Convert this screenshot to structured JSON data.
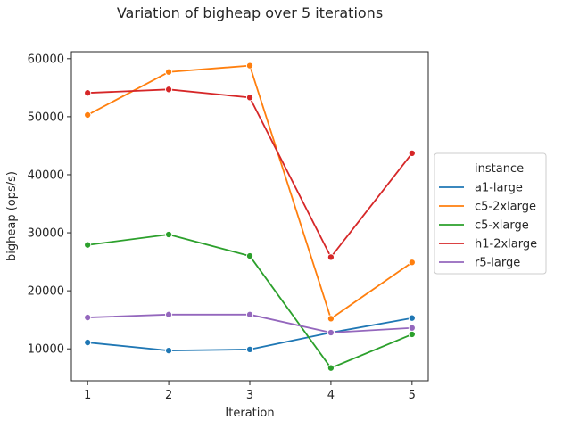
{
  "chart_data": {
    "type": "line",
    "title": "Variation of bigheap over 5 iterations",
    "xlabel": "Iteration",
    "ylabel": "bigheap (ops/s)",
    "x": [
      1,
      2,
      3,
      4,
      5
    ],
    "xlim": [
      0.8,
      5.2
    ],
    "ylim": [
      4500,
      61200
    ],
    "yticks": [
      10000,
      20000,
      30000,
      40000,
      50000,
      60000
    ],
    "grid": false,
    "legend": {
      "title": "instance",
      "placement": "center-right outside"
    },
    "series": [
      {
        "name": "a1-large",
        "color": "#1f77b4",
        "values": [
          11100,
          9700,
          9900,
          12800,
          15300
        ]
      },
      {
        "name": "c5-2xlarge",
        "color": "#ff7f0e",
        "values": [
          50300,
          57700,
          58800,
          15200,
          24900
        ]
      },
      {
        "name": "c5-xlarge",
        "color": "#2ca02c",
        "values": [
          27900,
          29700,
          26000,
          6700,
          12500
        ]
      },
      {
        "name": "h1-2xlarge",
        "color": "#d62728",
        "values": [
          54100,
          54700,
          53300,
          25800,
          43700
        ]
      },
      {
        "name": "r5-large",
        "color": "#9467bd",
        "values": [
          15400,
          15900,
          15900,
          12800,
          13600
        ]
      }
    ]
  }
}
